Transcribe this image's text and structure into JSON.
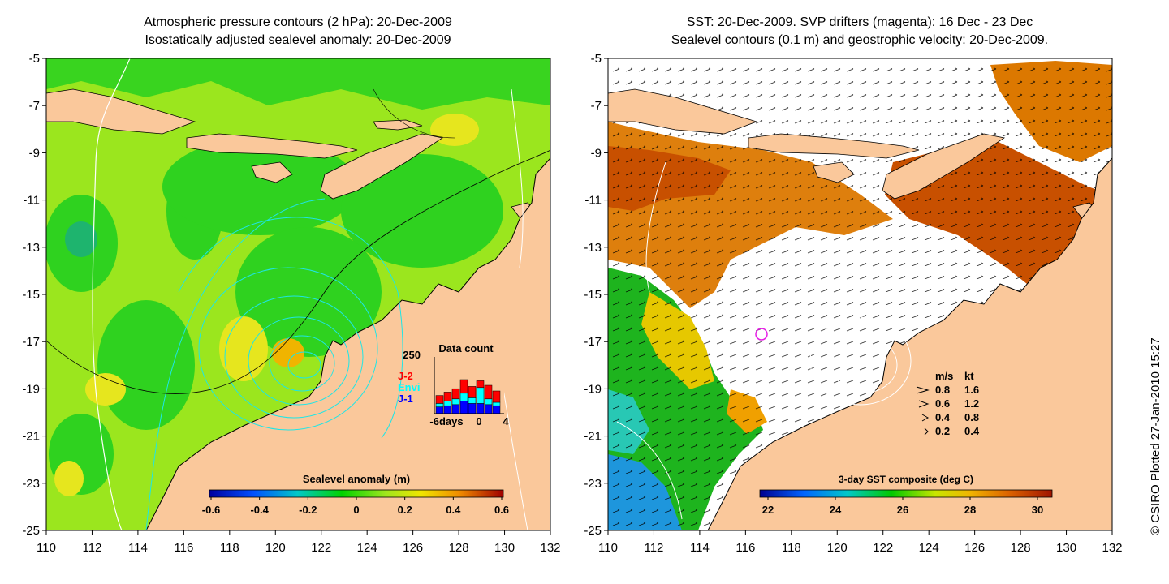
{
  "left_map": {
    "title_line1": "Atmospheric pressure contours (2 hPa): 20-Dec-2009",
    "title_line2": "Isostatically adjusted sealevel anomaly: 20-Dec-2009",
    "y_ticks": [
      "-5",
      "-7",
      "-9",
      "-11",
      "-13",
      "-15",
      "-17",
      "-19",
      "-21",
      "-23",
      "-25"
    ],
    "x_ticks": [
      "110",
      "112",
      "114",
      "116",
      "118",
      "120",
      "122",
      "124",
      "126",
      "128",
      "130",
      "132"
    ],
    "colorbar_title": "Sealevel anomaly (m)",
    "colorbar_ticks": [
      "-0.6",
      "-0.4",
      "-0.2",
      "0",
      "0.2",
      "0.4",
      "0.6"
    ],
    "data_count": {
      "title": "Data count",
      "ymax_label": "250",
      "legend": [
        "J-2",
        "Envi",
        "J-1"
      ],
      "legend_colors": [
        "#ff0000",
        "#00ffff",
        "#0000ff"
      ],
      "x_labels": [
        "-6days",
        "0",
        "4"
      ],
      "bars": [
        {
          "j1": 30,
          "envi": 15,
          "j2": 35
        },
        {
          "j1": 35,
          "envi": 20,
          "j2": 40
        },
        {
          "j1": 40,
          "envi": 25,
          "j2": 45
        },
        {
          "j1": 55,
          "envi": 35,
          "j2": 60
        },
        {
          "j1": 45,
          "envi": 25,
          "j2": 50
        },
        {
          "j1": 45,
          "envi": 70,
          "j2": 30
        },
        {
          "j1": 40,
          "envi": 25,
          "j2": 60
        },
        {
          "j1": 35,
          "envi": 15,
          "j2": 50
        }
      ]
    }
  },
  "right_map": {
    "title_line1": "SST: 20-Dec-2009. SVP drifters (magenta): 16 Dec - 23 Dec",
    "title_line2": "Sealevel contours (0.1 m) and geostrophic velocity: 20-Dec-2009.",
    "y_ticks": [
      "-5",
      "-7",
      "-9",
      "-11",
      "-13",
      "-15",
      "-17",
      "-19",
      "-21",
      "-23",
      "-25"
    ],
    "x_ticks": [
      "110",
      "112",
      "114",
      "116",
      "118",
      "120",
      "122",
      "124",
      "126",
      "128",
      "130",
      "132"
    ],
    "colorbar_title": "3-day SST composite (deg C)",
    "colorbar_ticks": [
      "22",
      "24",
      "26",
      "28",
      "30"
    ],
    "velocity_legend": {
      "header_ms": "m/s",
      "header_kt": "kt",
      "rows": [
        {
          "ms": "0.8",
          "kt": "1.6"
        },
        {
          "ms": "0.6",
          "kt": "1.2"
        },
        {
          "ms": "0.4",
          "kt": "0.8"
        },
        {
          "ms": "0.2",
          "kt": "0.4"
        }
      ]
    }
  },
  "credit": "© CSIRO Plotted 27-Jan-2010 15:27",
  "colors": {
    "land": "#fac89b",
    "sea_green": "#2fd21f",
    "sea_yellowgreen": "#9be61e",
    "contour_cyan": "#1ee6e6"
  }
}
